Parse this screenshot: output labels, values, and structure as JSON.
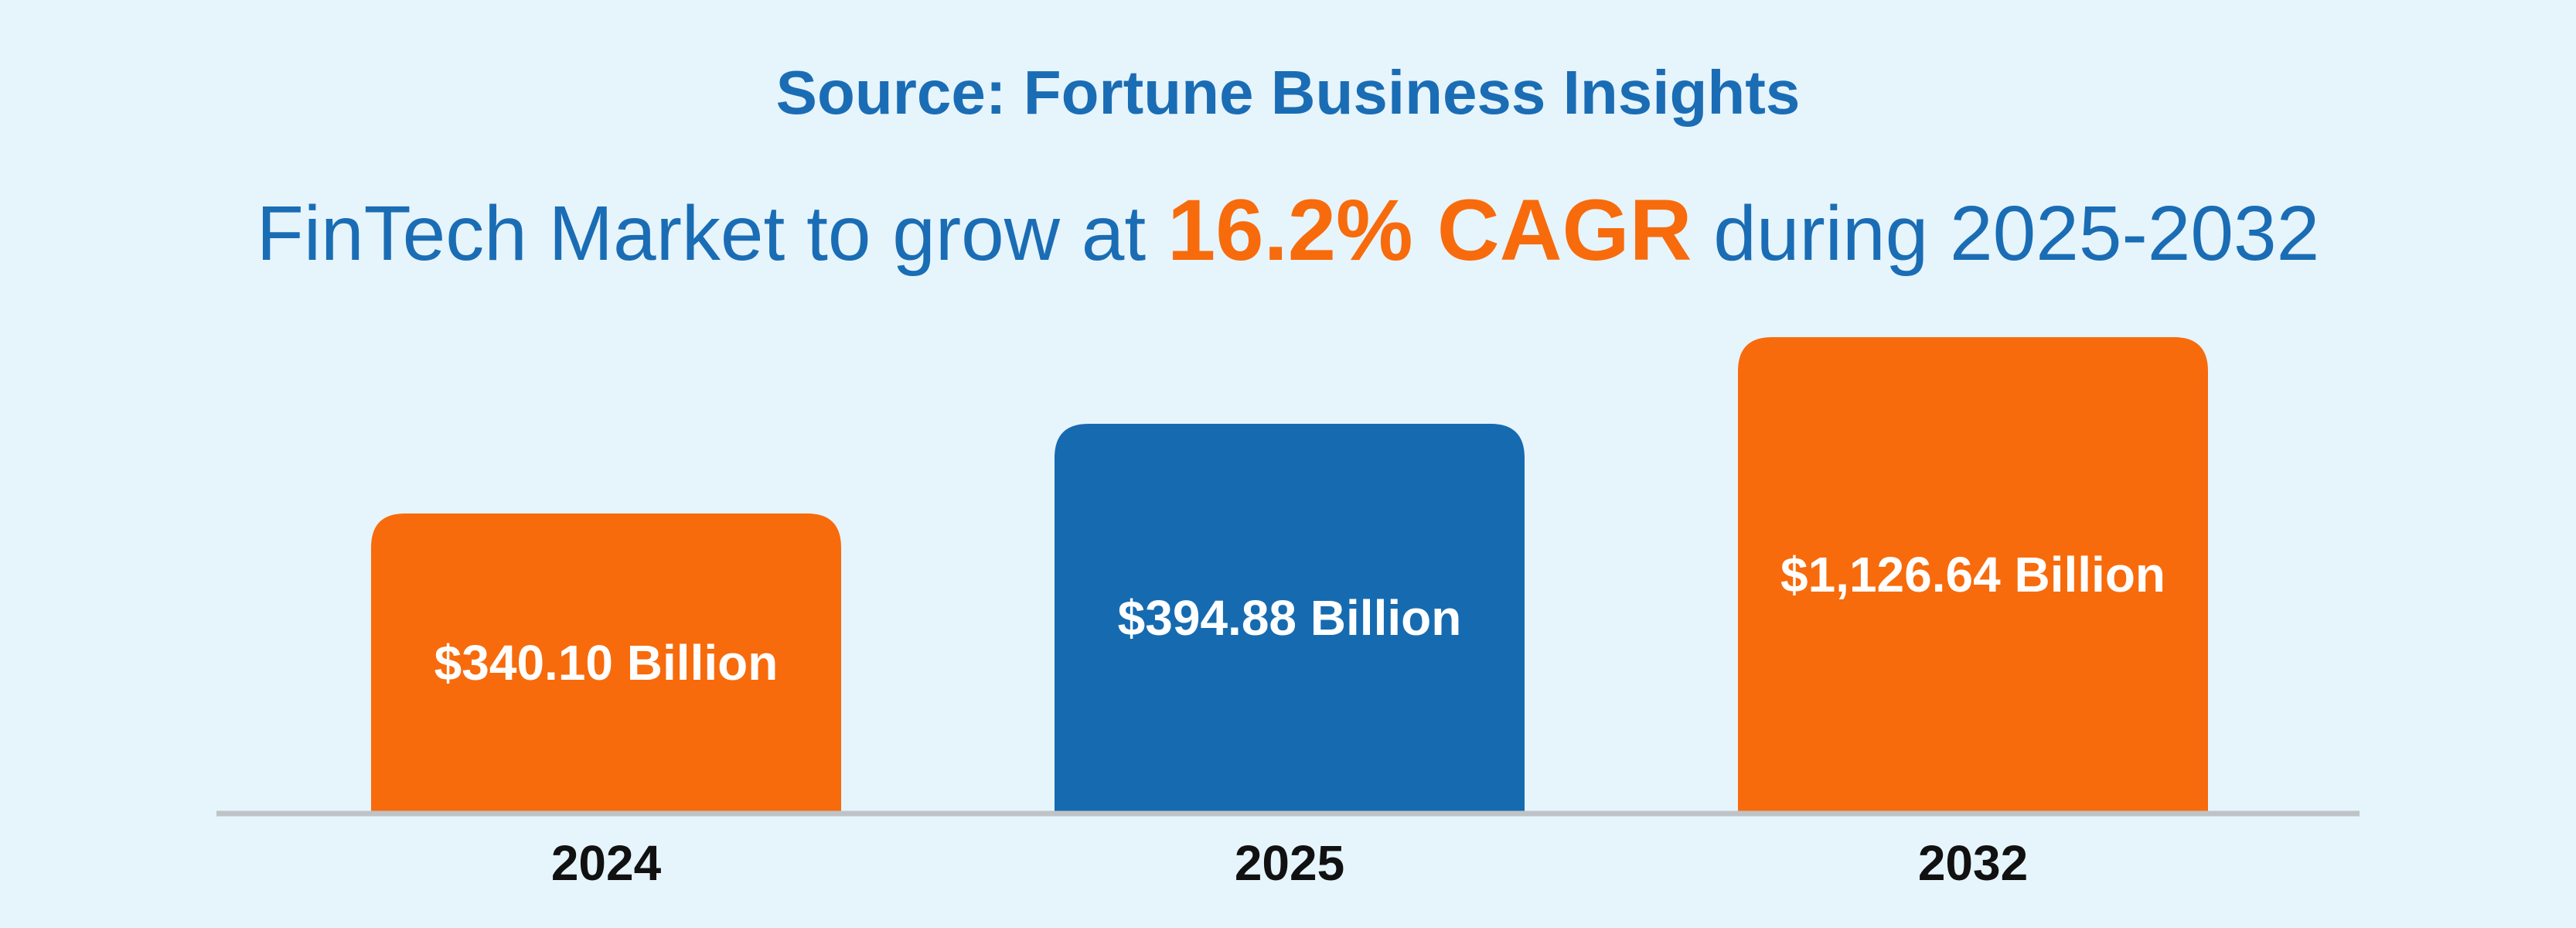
{
  "source_text": "Source: Fortune Business Insights",
  "headline": {
    "before": "FinTech Market to grow at",
    "highlight": "16.2% CAGR",
    "after": "during 2025-2032"
  },
  "colors": {
    "background": "#e6f4fc",
    "accent_orange": "#f76b0c",
    "accent_blue": "#166bb0",
    "title_blue": "#1a6db4",
    "baseline": "#bfc3c7",
    "category_label": "#111111",
    "value_label": "#ffffff"
  },
  "chart_data": {
    "type": "bar",
    "title": "FinTech Market to grow at 16.2% CAGR during 2025-2032",
    "categories": [
      "2024",
      "2025",
      "2032"
    ],
    "values": [
      340.1,
      394.88,
      1126.64
    ],
    "value_labels": [
      "$340.10 Billion",
      "$394.88 Billion",
      "$1,126.64 Billion"
    ],
    "bar_colors": [
      "#f76b0c",
      "#166bb0",
      "#f76b0c"
    ],
    "xlabel": "",
    "ylabel": "",
    "grid": false,
    "legend": false
  }
}
